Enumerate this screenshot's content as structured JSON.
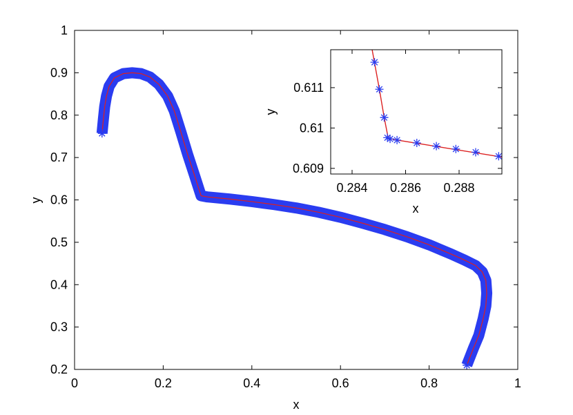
{
  "chart_data": [
    {
      "type": "line",
      "xlabel": "x",
      "ylabel": "y",
      "xlim": [
        0,
        1
      ],
      "ylim": [
        0.2,
        1
      ],
      "xticks": [
        "0",
        "0.2",
        "0.4",
        "0.6",
        "0.8",
        "1"
      ],
      "yticks": [
        "0.2",
        "0.3",
        "0.4",
        "0.5",
        "0.6",
        "0.7",
        "0.8",
        "0.9",
        "1"
      ],
      "grid": false,
      "series": [
        {
          "style": "thick blue markers with thin red line",
          "marker_color": "#2a3cf0",
          "line_color": "#dc2020",
          "x": [
            0.062,
            0.065,
            0.068,
            0.072,
            0.078,
            0.09,
            0.11,
            0.13,
            0.15,
            0.17,
            0.19,
            0.21,
            0.225,
            0.24,
            0.255,
            0.27,
            0.2854,
            0.3,
            0.35,
            0.4,
            0.45,
            0.5,
            0.55,
            0.6,
            0.65,
            0.7,
            0.75,
            0.8,
            0.85,
            0.88,
            0.905,
            0.92,
            0.928,
            0.93,
            0.928,
            0.922,
            0.912,
            0.9,
            0.885
          ],
          "y": [
            0.757,
            0.79,
            0.82,
            0.845,
            0.868,
            0.888,
            0.898,
            0.9,
            0.898,
            0.89,
            0.873,
            0.845,
            0.81,
            0.76,
            0.708,
            0.66,
            0.6098,
            0.607,
            0.602,
            0.596,
            0.589,
            0.581,
            0.571,
            0.559,
            0.545,
            0.53,
            0.513,
            0.494,
            0.472,
            0.458,
            0.445,
            0.43,
            0.41,
            0.38,
            0.35,
            0.32,
            0.28,
            0.25,
            0.21
          ]
        }
      ]
    },
    {
      "type": "line",
      "xlabel": "x",
      "ylabel": "y",
      "xlim": [
        0.2832,
        0.2896
      ],
      "ylim": [
        0.60886,
        0.61194
      ],
      "xticks": [
        "0.284",
        "0.286",
        "0.288"
      ],
      "yticks": [
        "0.609",
        "0.61",
        "0.611"
      ],
      "grid": false,
      "series": [
        {
          "style": "blue asterisk markers with red line",
          "marker_color": "#2a3cf0",
          "line_color": "#dc2020",
          "x": [
            0.28484,
            0.28502,
            0.2852,
            0.28532,
            0.28542,
            0.28568,
            0.28642,
            0.28715,
            0.28788,
            0.28862,
            0.28948
          ],
          "y": [
            0.61163,
            0.61096,
            0.61026,
            0.60976,
            0.60973,
            0.6097,
            0.60963,
            0.60955,
            0.60948,
            0.6094,
            0.6093
          ],
          "line_x": [
            0.28475,
            0.28502,
            0.2852,
            0.28535,
            0.2856,
            0.2896
          ],
          "line_y": [
            0.61194,
            0.61096,
            0.61026,
            0.60975,
            0.60971,
            0.60928
          ]
        }
      ]
    }
  ]
}
